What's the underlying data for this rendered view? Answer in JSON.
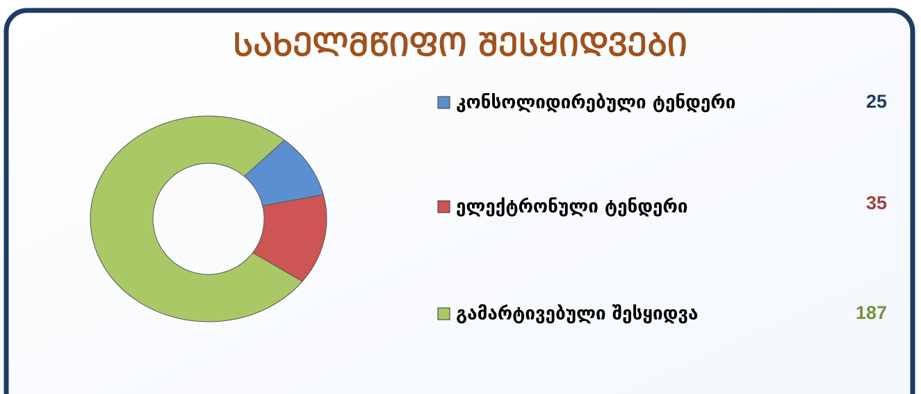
{
  "chart_data": {
    "type": "pie",
    "donut": true,
    "title": "ᲡᲐᲮᲔᲚᲛᲬᲘᲤᲝ ᲨᲔᲡᲧᲘᲓᲕᲔᲑᲘ",
    "categories": [
      "კონსოლიდირებული ტენდერი",
      "ელექტრონული ტენდერი",
      "გამარტივებული შესყიდვა"
    ],
    "values": [
      25,
      35,
      187
    ],
    "colors": [
      "#5b8fd0",
      "#cd5554",
      "#aac866"
    ]
  }
}
